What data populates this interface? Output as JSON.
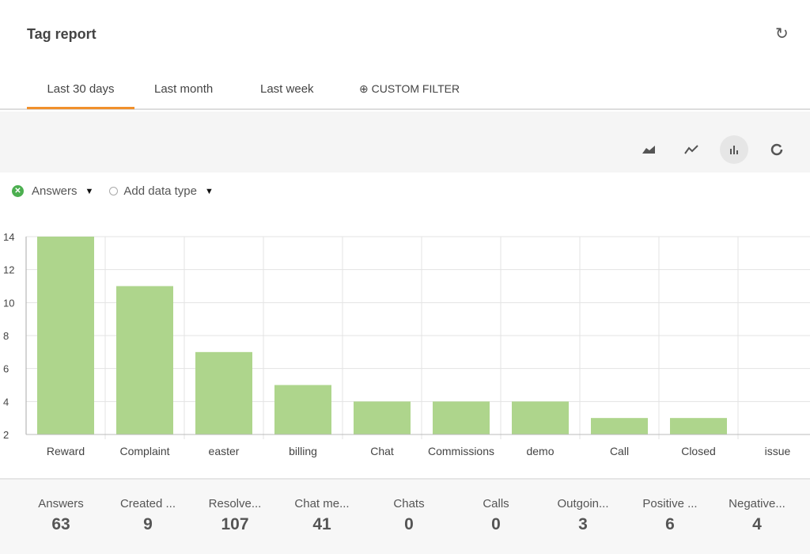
{
  "header": {
    "title": "Tag report",
    "refresh_icon": "refresh-icon"
  },
  "tabs": [
    {
      "label": "Last 30 days",
      "active": true
    },
    {
      "label": "Last month"
    },
    {
      "label": "Last week"
    },
    {
      "label": "CUSTOM FILTER",
      "icon": "plus-circle-icon"
    }
  ],
  "chart_types": [
    {
      "icon": "area-chart-icon"
    },
    {
      "icon": "line-chart-icon"
    },
    {
      "icon": "bar-chart-icon",
      "active": true
    },
    {
      "icon": "donut-chart-icon"
    }
  ],
  "filters": {
    "series": "Answers",
    "add": "Add data type"
  },
  "colors": {
    "bar": "#aed58c",
    "accent": "#f0902c",
    "series_dot": "#4caf50"
  },
  "chart_data": {
    "type": "bar",
    "categories": [
      "Reward",
      "Complaint",
      "easter",
      "billing",
      "Chat",
      "Commissions",
      "demo",
      "Call",
      "Closed",
      "issue"
    ],
    "values": [
      14,
      11,
      7,
      5,
      4,
      4,
      4,
      3,
      3,
      2
    ],
    "ylim": [
      2,
      14
    ],
    "yticks": [
      2,
      4,
      6,
      8,
      10,
      12,
      14
    ],
    "grid": true
  },
  "stats": [
    {
      "label": "Answers",
      "value": "63"
    },
    {
      "label": "Created ...",
      "value": "9"
    },
    {
      "label": "Resolve...",
      "value": "107"
    },
    {
      "label": "Chat me...",
      "value": "41"
    },
    {
      "label": "Chats",
      "value": "0"
    },
    {
      "label": "Calls",
      "value": "0"
    },
    {
      "label": "Outgoin...",
      "value": "3"
    },
    {
      "label": "Positive ...",
      "value": "6"
    },
    {
      "label": "Negative...",
      "value": "4"
    }
  ]
}
